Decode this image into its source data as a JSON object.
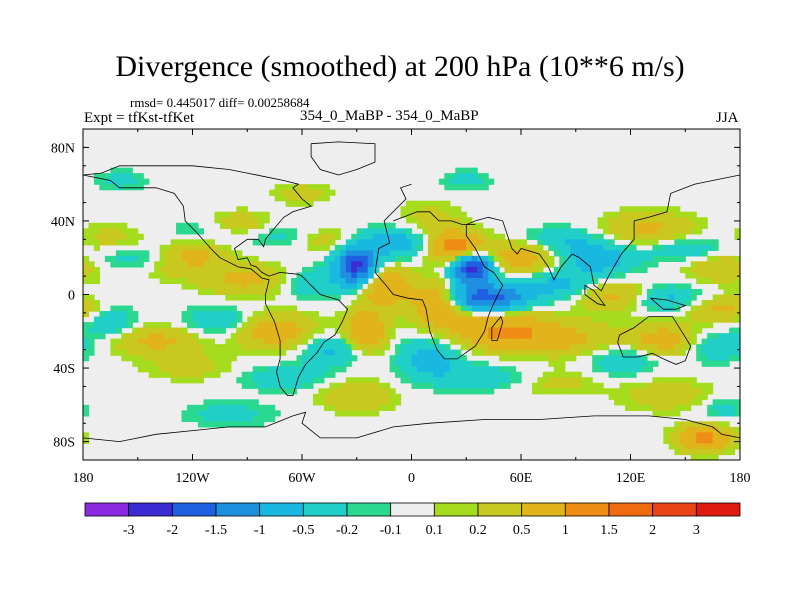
{
  "chart_data": {
    "type": "heatmap",
    "title": "Divergence (smoothed) at 200 hPa (10**6 m/s)",
    "stats": "rmsd= 0.445017 diff= 0.00258684",
    "experiment": "Expt = tfKst-tfKet",
    "case_label": "354_0_MaBP - 354_0_MaBP",
    "season": "JJA",
    "x_ticks": [
      {
        "value": -180,
        "label": "180"
      },
      {
        "value": -120,
        "label": "120W"
      },
      {
        "value": -60,
        "label": "60W"
      },
      {
        "value": 0,
        "label": "0"
      },
      {
        "value": 60,
        "label": "60E"
      },
      {
        "value": 120,
        "label": "120E"
      },
      {
        "value": 180,
        "label": "180"
      }
    ],
    "y_ticks": [
      {
        "value": 80,
        "label": "80N"
      },
      {
        "value": 40,
        "label": "40N"
      },
      {
        "value": 0,
        "label": "0"
      },
      {
        "value": -40,
        "label": "40S"
      },
      {
        "value": -80,
        "label": "80S"
      }
    ],
    "xlim": [
      -180,
      180
    ],
    "ylim": [
      -90,
      90
    ],
    "colorbar": {
      "labels": [
        "-3",
        "-2",
        "-1.5",
        "-1",
        "-0.5",
        "-0.2",
        "-0.1",
        "0.1",
        "0.2",
        "0.5",
        "1",
        "1.5",
        "2",
        "3"
      ],
      "colors": [
        "#8a2be2",
        "#3a2bd2",
        "#1f60e0",
        "#1f8fe0",
        "#18b8e0",
        "#20d0c8",
        "#2ad890",
        "#eeeeee",
        "#a6dc1e",
        "#c8c81e",
        "#e0b41a",
        "#ee8c14",
        "#f06a10",
        "#e84416",
        "#e01a10"
      ]
    },
    "blobs": [
      {
        "lon": -165,
        "lat": 30,
        "v": 0.3,
        "w": 14,
        "h": 6
      },
      {
        "lon": -150,
        "lat": 20,
        "v": -0.4,
        "w": 20,
        "h": 5
      },
      {
        "lon": -120,
        "lat": 22,
        "v": 0.6,
        "w": 14,
        "h": 5
      },
      {
        "lon": -110,
        "lat": 35,
        "v": -0.3,
        "w": 16,
        "h": 5
      },
      {
        "lon": -95,
        "lat": 38,
        "v": 0.5,
        "w": 14,
        "h": 5
      },
      {
        "lon": -70,
        "lat": 32,
        "v": -0.4,
        "w": 14,
        "h": 5
      },
      {
        "lon": -50,
        "lat": 30,
        "v": 0.4,
        "w": 14,
        "h": 5
      },
      {
        "lon": -130,
        "lat": 15,
        "v": 0.3,
        "w": 16,
        "h": 5
      },
      {
        "lon": -90,
        "lat": 8,
        "v": 0.6,
        "w": 18,
        "h": 6
      },
      {
        "lon": -55,
        "lat": 6,
        "v": -0.5,
        "w": 12,
        "h": 6
      },
      {
        "lon": -30,
        "lat": 15,
        "v": -2.2,
        "w": 8,
        "h": 7
      },
      {
        "lon": -15,
        "lat": 5,
        "v": 1.0,
        "w": 10,
        "h": 8
      },
      {
        "lon": -10,
        "lat": 28,
        "v": -0.8,
        "w": 14,
        "h": 6
      },
      {
        "lon": 10,
        "lat": 40,
        "v": 0.3,
        "w": 14,
        "h": 8
      },
      {
        "lon": 25,
        "lat": 25,
        "v": 1.5,
        "w": 10,
        "h": 6
      },
      {
        "lon": 33,
        "lat": 15,
        "v": -2.5,
        "w": 8,
        "h": 6
      },
      {
        "lon": 40,
        "lat": -2,
        "v": -1.8,
        "w": 16,
        "h": 5
      },
      {
        "lon": 15,
        "lat": -5,
        "v": 1.2,
        "w": 10,
        "h": 8
      },
      {
        "lon": 60,
        "lat": 20,
        "v": 0.8,
        "w": 16,
        "h": 6
      },
      {
        "lon": 80,
        "lat": 30,
        "v": -0.4,
        "w": 14,
        "h": 5
      },
      {
        "lon": 100,
        "lat": 20,
        "v": -0.8,
        "w": 16,
        "h": 7
      },
      {
        "lon": 130,
        "lat": 35,
        "v": 0.6,
        "w": 18,
        "h": 7
      },
      {
        "lon": 150,
        "lat": 25,
        "v": -0.5,
        "w": 16,
        "h": 5
      },
      {
        "lon": 170,
        "lat": 15,
        "v": 0.5,
        "w": 14,
        "h": 6
      },
      {
        "lon": 80,
        "lat": 5,
        "v": -0.6,
        "w": 18,
        "h": 5
      },
      {
        "lon": 110,
        "lat": 0,
        "v": 0.7,
        "w": 14,
        "h": 6
      },
      {
        "lon": 140,
        "lat": -2,
        "v": -0.6,
        "w": 14,
        "h": 5
      },
      {
        "lon": 170,
        "lat": -8,
        "v": 0.6,
        "w": 14,
        "h": 5
      },
      {
        "lon": -165,
        "lat": -15,
        "v": -0.5,
        "w": 10,
        "h": 6
      },
      {
        "lon": -140,
        "lat": -25,
        "v": 0.6,
        "w": 18,
        "h": 6
      },
      {
        "lon": -105,
        "lat": -15,
        "v": -0.5,
        "w": 14,
        "h": 6
      },
      {
        "lon": -75,
        "lat": -20,
        "v": 0.8,
        "w": 16,
        "h": 7
      },
      {
        "lon": -45,
        "lat": -30,
        "v": -0.6,
        "w": 12,
        "h": 6
      },
      {
        "lon": -25,
        "lat": -20,
        "v": 1.0,
        "w": 8,
        "h": 8
      },
      {
        "lon": 10,
        "lat": -35,
        "v": -0.7,
        "w": 12,
        "h": 8
      },
      {
        "lon": 50,
        "lat": -20,
        "v": 1.1,
        "w": 20,
        "h": 7
      },
      {
        "lon": 90,
        "lat": -25,
        "v": 0.5,
        "w": 20,
        "h": 7
      },
      {
        "lon": 115,
        "lat": -35,
        "v": -0.5,
        "w": 14,
        "h": 6
      },
      {
        "lon": 140,
        "lat": -25,
        "v": 0.8,
        "w": 14,
        "h": 6
      },
      {
        "lon": 165,
        "lat": -28,
        "v": -0.5,
        "w": 14,
        "h": 6
      },
      {
        "lon": -120,
        "lat": -40,
        "v": 0.3,
        "w": 18,
        "h": 5
      },
      {
        "lon": -70,
        "lat": -45,
        "v": -0.4,
        "w": 18,
        "h": 5
      },
      {
        "lon": -30,
        "lat": -55,
        "v": 0.5,
        "w": 14,
        "h": 6
      },
      {
        "lon": 40,
        "lat": -45,
        "v": -0.4,
        "w": 18,
        "h": 5
      },
      {
        "lon": 80,
        "lat": -48,
        "v": 0.3,
        "w": 16,
        "h": 5
      },
      {
        "lon": 140,
        "lat": -55,
        "v": 0.4,
        "w": 18,
        "h": 6
      },
      {
        "lon": 170,
        "lat": -62,
        "v": -0.3,
        "w": 10,
        "h": 5
      },
      {
        "lon": -100,
        "lat": -65,
        "v": -0.3,
        "w": 18,
        "h": 5
      },
      {
        "lon": 160,
        "lat": -78,
        "v": 1.2,
        "w": 10,
        "h": 5
      },
      {
        "lon": -160,
        "lat": 62,
        "v": -0.3,
        "w": 10,
        "h": 4
      },
      {
        "lon": 30,
        "lat": 62,
        "v": -0.3,
        "w": 10,
        "h": 4
      },
      {
        "lon": -60,
        "lat": 55,
        "v": 0.3,
        "w": 12,
        "h": 4
      }
    ],
    "coastlines": [
      [
        [
          0,
          60
        ],
        [
          -6,
          58
        ],
        [
          -3,
          52
        ],
        [
          -15,
          40
        ],
        [
          -12,
          28
        ],
        [
          -18,
          25
        ],
        [
          -20,
          12
        ],
        [
          -14,
          5
        ],
        [
          -10,
          0
        ],
        [
          -2,
          -2
        ],
        [
          6,
          -3
        ],
        [
          8,
          -8
        ],
        [
          10,
          -20
        ],
        [
          14,
          -30
        ],
        [
          18,
          -35
        ],
        [
          25,
          -35
        ],
        [
          35,
          -28
        ],
        [
          40,
          -20
        ],
        [
          42,
          -12
        ],
        [
          45,
          -5
        ],
        [
          50,
          5
        ],
        [
          45,
          12
        ],
        [
          40,
          15
        ],
        [
          35,
          25
        ],
        [
          30,
          32
        ],
        [
          30,
          38
        ],
        [
          35,
          40
        ],
        [
          42,
          42
        ],
        [
          50,
          40
        ],
        [
          55,
          25
        ],
        [
          58,
          22
        ],
        [
          60,
          25
        ],
        [
          70,
          22
        ],
        [
          75,
          15
        ],
        [
          78,
          8
        ],
        [
          82,
          15
        ],
        [
          88,
          22
        ],
        [
          92,
          20
        ],
        [
          98,
          15
        ],
        [
          100,
          5
        ],
        [
          104,
          2
        ],
        [
          108,
          10
        ],
        [
          115,
          22
        ],
        [
          122,
          30
        ],
        [
          122,
          40
        ],
        [
          130,
          42
        ],
        [
          140,
          45
        ],
        [
          142,
          55
        ],
        [
          155,
          60
        ],
        [
          165,
          62
        ],
        [
          180,
          65
        ]
      ],
      [
        [
          180,
          65
        ],
        [
          180,
          90
        ]
      ],
      [
        [
          -10,
          40
        ],
        [
          -2,
          43
        ],
        [
          3,
          45
        ],
        [
          10,
          45
        ],
        [
          15,
          40
        ],
        [
          22,
          40
        ],
        [
          28,
          38
        ],
        [
          35,
          38
        ]
      ],
      [
        [
          -180,
          65
        ],
        [
          -165,
          62
        ],
        [
          -160,
          58
        ],
        [
          -140,
          58
        ],
        [
          -130,
          55
        ],
        [
          -125,
          48
        ],
        [
          -124,
          40
        ],
        [
          -118,
          34
        ],
        [
          -110,
          25
        ],
        [
          -105,
          20
        ],
        [
          -95,
          15
        ],
        [
          -88,
          14
        ],
        [
          -82,
          9
        ],
        [
          -78,
          8
        ],
        [
          -80,
          0
        ],
        [
          -80,
          -5
        ],
        [
          -75,
          -15
        ],
        [
          -72,
          -25
        ],
        [
          -72,
          -35
        ],
        [
          -74,
          -42
        ],
        [
          -72,
          -50
        ],
        [
          -68,
          -55
        ],
        [
          -65,
          -55
        ],
        [
          -62,
          -45
        ],
        [
          -58,
          -38
        ],
        [
          -52,
          -32
        ],
        [
          -48,
          -26
        ],
        [
          -42,
          -22
        ],
        [
          -38,
          -15
        ],
        [
          -35,
          -8
        ],
        [
          -40,
          -3
        ],
        [
          -50,
          0
        ],
        [
          -55,
          5
        ],
        [
          -60,
          10
        ],
        [
          -62,
          11
        ],
        [
          -72,
          12
        ],
        [
          -78,
          10
        ],
        [
          -82,
          12
        ],
        [
          -85,
          15
        ],
        [
          -88,
          16
        ],
        [
          -90,
          20
        ],
        [
          -95,
          19
        ],
        [
          -97,
          25
        ],
        [
          -90,
          30
        ],
        [
          -84,
          30
        ],
        [
          -81,
          26
        ],
        [
          -80,
          30
        ],
        [
          -76,
          35
        ],
        [
          -70,
          42
        ],
        [
          -65,
          45
        ],
        [
          -55,
          48
        ],
        [
          -60,
          52
        ],
        [
          -65,
          58
        ],
        [
          -62,
          60
        ],
        [
          -70,
          62
        ],
        [
          -80,
          64
        ],
        [
          -90,
          66
        ],
        [
          -100,
          68
        ],
        [
          -120,
          70
        ],
        [
          -140,
          70
        ],
        [
          -160,
          70
        ],
        [
          -170,
          66
        ],
        [
          -180,
          65
        ]
      ],
      [
        [
          -55,
          82
        ],
        [
          -40,
          83
        ],
        [
          -20,
          82
        ],
        [
          -20,
          72
        ],
        [
          -30,
          68
        ],
        [
          -40,
          65
        ],
        [
          -50,
          68
        ],
        [
          -55,
          75
        ],
        [
          -55,
          82
        ]
      ],
      [
        [
          114,
          -22
        ],
        [
          113,
          -26
        ],
        [
          116,
          -34
        ],
        [
          124,
          -34
        ],
        [
          132,
          -32
        ],
        [
          138,
          -35
        ],
        [
          145,
          -38
        ],
        [
          150,
          -36
        ],
        [
          153,
          -28
        ],
        [
          148,
          -20
        ],
        [
          143,
          -12
        ],
        [
          136,
          -12
        ],
        [
          130,
          -12
        ],
        [
          122,
          -18
        ],
        [
          114,
          -22
        ]
      ],
      [
        [
          44,
          -25
        ],
        [
          47,
          -25
        ],
        [
          50,
          -15
        ],
        [
          49,
          -12
        ],
        [
          44,
          -18
        ],
        [
          44,
          -25
        ]
      ],
      [
        [
          -180,
          -78
        ],
        [
          -160,
          -80
        ],
        [
          -140,
          -76
        ],
        [
          -120,
          -74
        ],
        [
          -100,
          -72
        ],
        [
          -80,
          -72
        ],
        [
          -65,
          -66
        ],
        [
          -58,
          -64
        ],
        [
          -60,
          -70
        ],
        [
          -50,
          -78
        ],
        [
          -30,
          -78
        ],
        [
          -10,
          -72
        ],
        [
          10,
          -70
        ],
        [
          40,
          -68
        ],
        [
          70,
          -68
        ],
        [
          100,
          -66
        ],
        [
          130,
          -66
        ],
        [
          150,
          -68
        ],
        [
          165,
          -72
        ],
        [
          170,
          -76
        ],
        [
          180,
          -78
        ]
      ],
      [
        [
          95,
          0
        ],
        [
          102,
          -5
        ],
        [
          106,
          -6
        ],
        [
          100,
          2
        ],
        [
          95,
          5
        ],
        [
          95,
          0
        ]
      ],
      [
        [
          131,
          -2
        ],
        [
          140,
          -3
        ],
        [
          150,
          -6
        ],
        [
          145,
          -8
        ],
        [
          138,
          -8
        ],
        [
          131,
          -2
        ]
      ]
    ]
  }
}
